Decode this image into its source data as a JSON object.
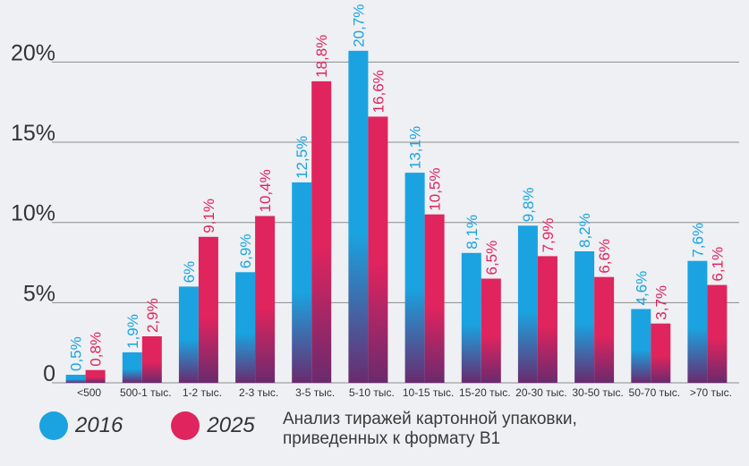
{
  "chart_data": {
    "type": "bar",
    "title": "",
    "xlabel": "",
    "ylabel": "",
    "ylim": [
      0,
      22
    ],
    "yticks": [
      0,
      5,
      10,
      15,
      20
    ],
    "ytick_labels": [
      "0",
      "5%",
      "10%",
      "15%",
      "20%"
    ],
    "grid": true,
    "categories": [
      "<500",
      "500-1 тыс.",
      "1-2 тыс.",
      "2-3 тыс.",
      "3-5 тыс.",
      "5-10 тыс.",
      "10-15 тыс.",
      "15-20 тыс.",
      "20-30 тыс.",
      "30-50 тыс.",
      "50-70 тыс.",
      ">70 тыс."
    ],
    "series": [
      {
        "name": "2016",
        "color": "#1aa3e0",
        "values": [
          0.5,
          1.9,
          6,
          6.9,
          12.5,
          20.7,
          13.1,
          8.1,
          9.8,
          8.2,
          4.6,
          7.6
        ],
        "labels": [
          "0,5%",
          "1,9%",
          "6%",
          "6,9%",
          "12,5%",
          "20,7%",
          "13,1%",
          "8,1%",
          "9,8%",
          "8,2%",
          "4,6%",
          "7,6%"
        ]
      },
      {
        "name": "2025",
        "color": "#e0245e",
        "values": [
          0.8,
          2.9,
          9.1,
          10.4,
          18.8,
          16.6,
          10.5,
          6.5,
          7.9,
          6.6,
          3.7,
          6.1
        ],
        "labels": [
          "0,8%",
          "2,9%",
          "9,1%",
          "10,4%",
          "18,8%",
          "16,6%",
          "10,5%",
          "6,5%",
          "7,9%",
          "6,6%",
          "3,7%",
          "6,1%"
        ]
      }
    ]
  },
  "legend": {
    "items": [
      {
        "label": "2016",
        "color": "#1aa3e0"
      },
      {
        "label": "2025",
        "color": "#e0245e"
      }
    ]
  },
  "caption": {
    "line1": "Анализ тиражей картонной упаковки,",
    "line2": "приведенных к формату В1"
  }
}
